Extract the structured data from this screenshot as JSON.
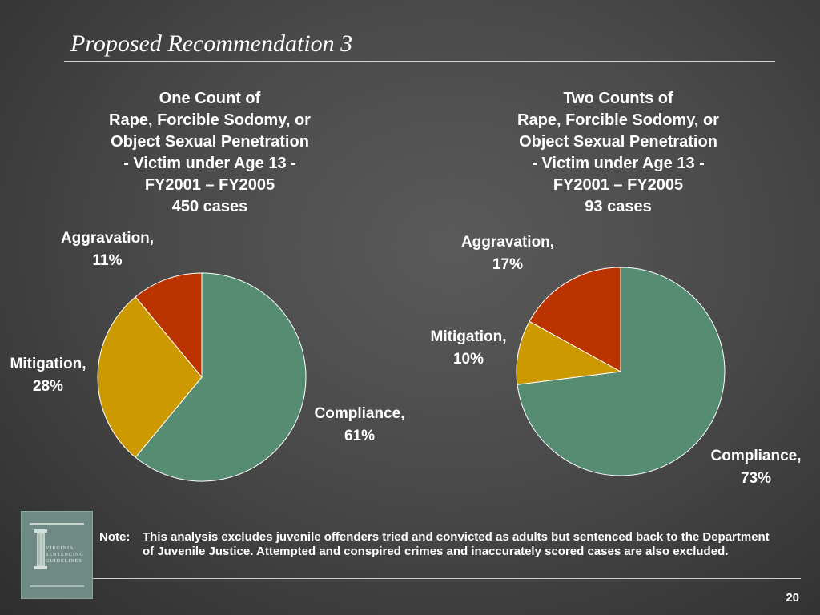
{
  "slide": {
    "title": "Proposed Recommendation 3",
    "page_number": "20"
  },
  "colors": {
    "compliance": "#558c72",
    "mitigation": "#cc9900",
    "aggravation": "#bb3300",
    "slice_border": "#ffffff"
  },
  "chart_data": [
    {
      "type": "pie",
      "title_lines": [
        "One Count of",
        "Rape, Forcible Sodomy, or",
        "Object Sexual Penetration",
        "- Victim under Age 13 -",
        "FY2001 – FY2005",
        "450 cases"
      ],
      "slices": [
        {
          "name": "Compliance",
          "label": "Compliance,",
          "value": 61,
          "value_label": "61%",
          "color": "#558c72"
        },
        {
          "name": "Mitigation",
          "label": "Mitigation,",
          "value": 28,
          "value_label": "28%",
          "color": "#cc9900"
        },
        {
          "name": "Aggravation",
          "label": "Aggravation,",
          "value": 11,
          "value_label": "11%",
          "color": "#bb3300"
        }
      ]
    },
    {
      "type": "pie",
      "title_lines": [
        "Two Counts of",
        "Rape, Forcible Sodomy, or",
        "Object Sexual Penetration",
        "- Victim under Age 13 -",
        "FY2001 – FY2005",
        "93 cases"
      ],
      "slices": [
        {
          "name": "Compliance",
          "label": "Compliance,",
          "value": 73,
          "value_label": "73%",
          "color": "#558c72"
        },
        {
          "name": "Mitigation",
          "label": "Mitigation,",
          "value": 10,
          "value_label": "10%",
          "color": "#cc9900"
        },
        {
          "name": "Aggravation",
          "label": "Aggravation,",
          "value": 17,
          "value_label": "17%",
          "color": "#bb3300"
        }
      ]
    }
  ],
  "logo": {
    "line1": "VIRGINIA",
    "line2": "SENTENCING",
    "line3": "GUIDELINES"
  },
  "note": {
    "prefix": "Note:",
    "text": "This analysis excludes juvenile offenders tried and convicted as adults but sentenced back to the Department of Juvenile Justice.  Attempted and conspired crimes and inaccurately scored cases are also excluded."
  }
}
